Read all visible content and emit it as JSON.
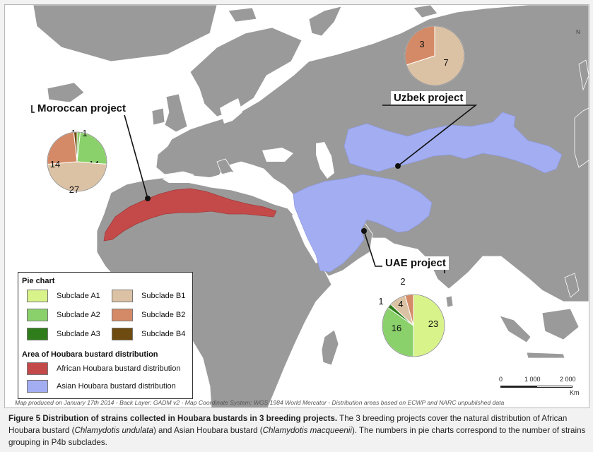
{
  "callouts": {
    "moroccan": "Moroccan project",
    "uzbek": "Uzbek project",
    "uae": "UAE project"
  },
  "pies": {
    "moroccan": [
      {
        "label": "1",
        "value": 1,
        "color": "#8ad16b"
      },
      {
        "label": "14",
        "value": 14,
        "color": "#8ad16b"
      },
      {
        "label": "27",
        "value": 27,
        "color": "#dcc2a4"
      },
      {
        "label": "14",
        "value": 14,
        "color": "#d48a66"
      },
      {
        "label": "1",
        "value": 1,
        "color": "#6e4b10"
      }
    ],
    "uzbek": [
      {
        "label": "7",
        "value": 7,
        "color": "#dcc2a4"
      },
      {
        "label": "3",
        "value": 3,
        "color": "#d48a66"
      }
    ],
    "uae": [
      {
        "label": "23",
        "value": 23,
        "color": "#d8f38a"
      },
      {
        "label": "16",
        "value": 16,
        "color": "#8ad16b"
      },
      {
        "label": "1",
        "value": 1,
        "color": "#2e7d1a"
      },
      {
        "label": "4",
        "value": 4,
        "color": "#dcc2a4"
      },
      {
        "label": "2",
        "value": 2,
        "color": "#d48a66"
      }
    ]
  },
  "legend": {
    "pie_title": "Pie chart",
    "items": [
      {
        "label": "Subclade A1",
        "color": "#d8f38a"
      },
      {
        "label": "Subclade B1",
        "color": "#dcc2a4"
      },
      {
        "label": "Subclade A2",
        "color": "#8ad16b"
      },
      {
        "label": "Subclade B2",
        "color": "#d48a66"
      },
      {
        "label": "Subclade A3",
        "color": "#2e7d1a"
      },
      {
        "label": "Subclade B4",
        "color": "#6e4b10"
      }
    ],
    "area_title": "Area of Houbara bustard distribution",
    "areas": [
      {
        "label": "African Houbara bustard distribution",
        "color": "#c44a4a"
      },
      {
        "label": "Asian Houbara bustard distribution",
        "color": "#a3aef2"
      }
    ]
  },
  "colors": {
    "water": "#ffffff",
    "land": "#9a9a9a",
    "border": "#ffffff",
    "african": "#c44a4a",
    "asian": "#a3aef2"
  },
  "scale": {
    "t0": "0",
    "t1": "1 000",
    "t2": "2 000",
    "unit": "Km"
  },
  "north": "N",
  "credit": "Map produced on January 17th 2014 - Back Layer: GADM v2 - Map Coordinate System: WGS 1984 World Mercator - Distribution areas based on ECWP and NARC unpublished data",
  "caption": {
    "title": "Figure 5 Distribution of strains collected in Houbara bustards in 3 breeding projects.",
    "p1": " The 3 breeding projects cover the natural distribution of African Houbara bustard (",
    "sp1": "Chlamydotis undulata",
    "p2": ") and Asian Houbara bustard (",
    "sp2": "Chlamydotis macqueenii",
    "p3": "). The numbers in pie charts correspond to the number of strains grouping in P4b subclades."
  }
}
